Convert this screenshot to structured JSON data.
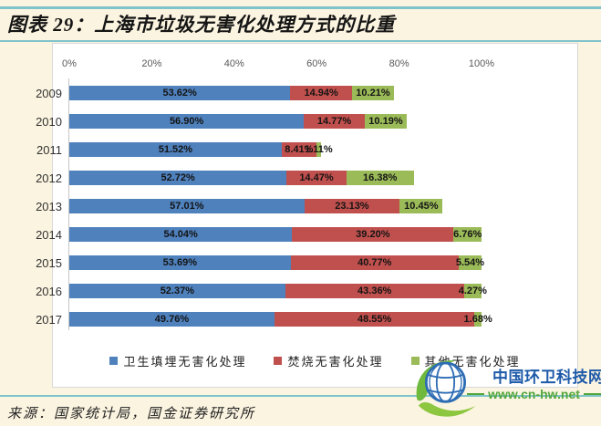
{
  "header": {
    "title": "图表 29：上海市垃圾无害化处理方式的比重"
  },
  "footer": {
    "source": "来源：国家统计局，国金证券研究所"
  },
  "watermark": {
    "site_name": "中国环卫科技网",
    "site_url": "www.cn-hw.net",
    "logo": "globe-leaf-logo"
  },
  "chart_data": {
    "type": "bar",
    "orientation": "horizontal",
    "stacked": true,
    "title": "上海市垃圾无害化处理方式的比重",
    "categories": [
      "2009",
      "2010",
      "2011",
      "2012",
      "2013",
      "2014",
      "2015",
      "2016",
      "2017"
    ],
    "series": [
      {
        "name": "卫生填埋无害化处理",
        "color": "#4F81BD",
        "values": [
          53.62,
          56.9,
          51.52,
          52.72,
          57.01,
          54.04,
          53.69,
          52.37,
          49.76
        ]
      },
      {
        "name": "焚烧无害化处理",
        "color": "#C0504D",
        "values": [
          14.94,
          14.77,
          8.41,
          14.47,
          23.13,
          39.2,
          40.77,
          43.36,
          48.55
        ]
      },
      {
        "name": "其他无害化处理",
        "color": "#9BBB59",
        "values": [
          10.21,
          10.19,
          1.11,
          16.38,
          10.45,
          6.76,
          5.54,
          4.27,
          1.68
        ]
      }
    ],
    "x_axis": {
      "ticks": [
        "0%",
        "20%",
        "40%",
        "60%",
        "80%",
        "100%"
      ],
      "min": 0,
      "max": 100
    },
    "data_labels": true,
    "legend_position": "bottom",
    "grid": false
  }
}
